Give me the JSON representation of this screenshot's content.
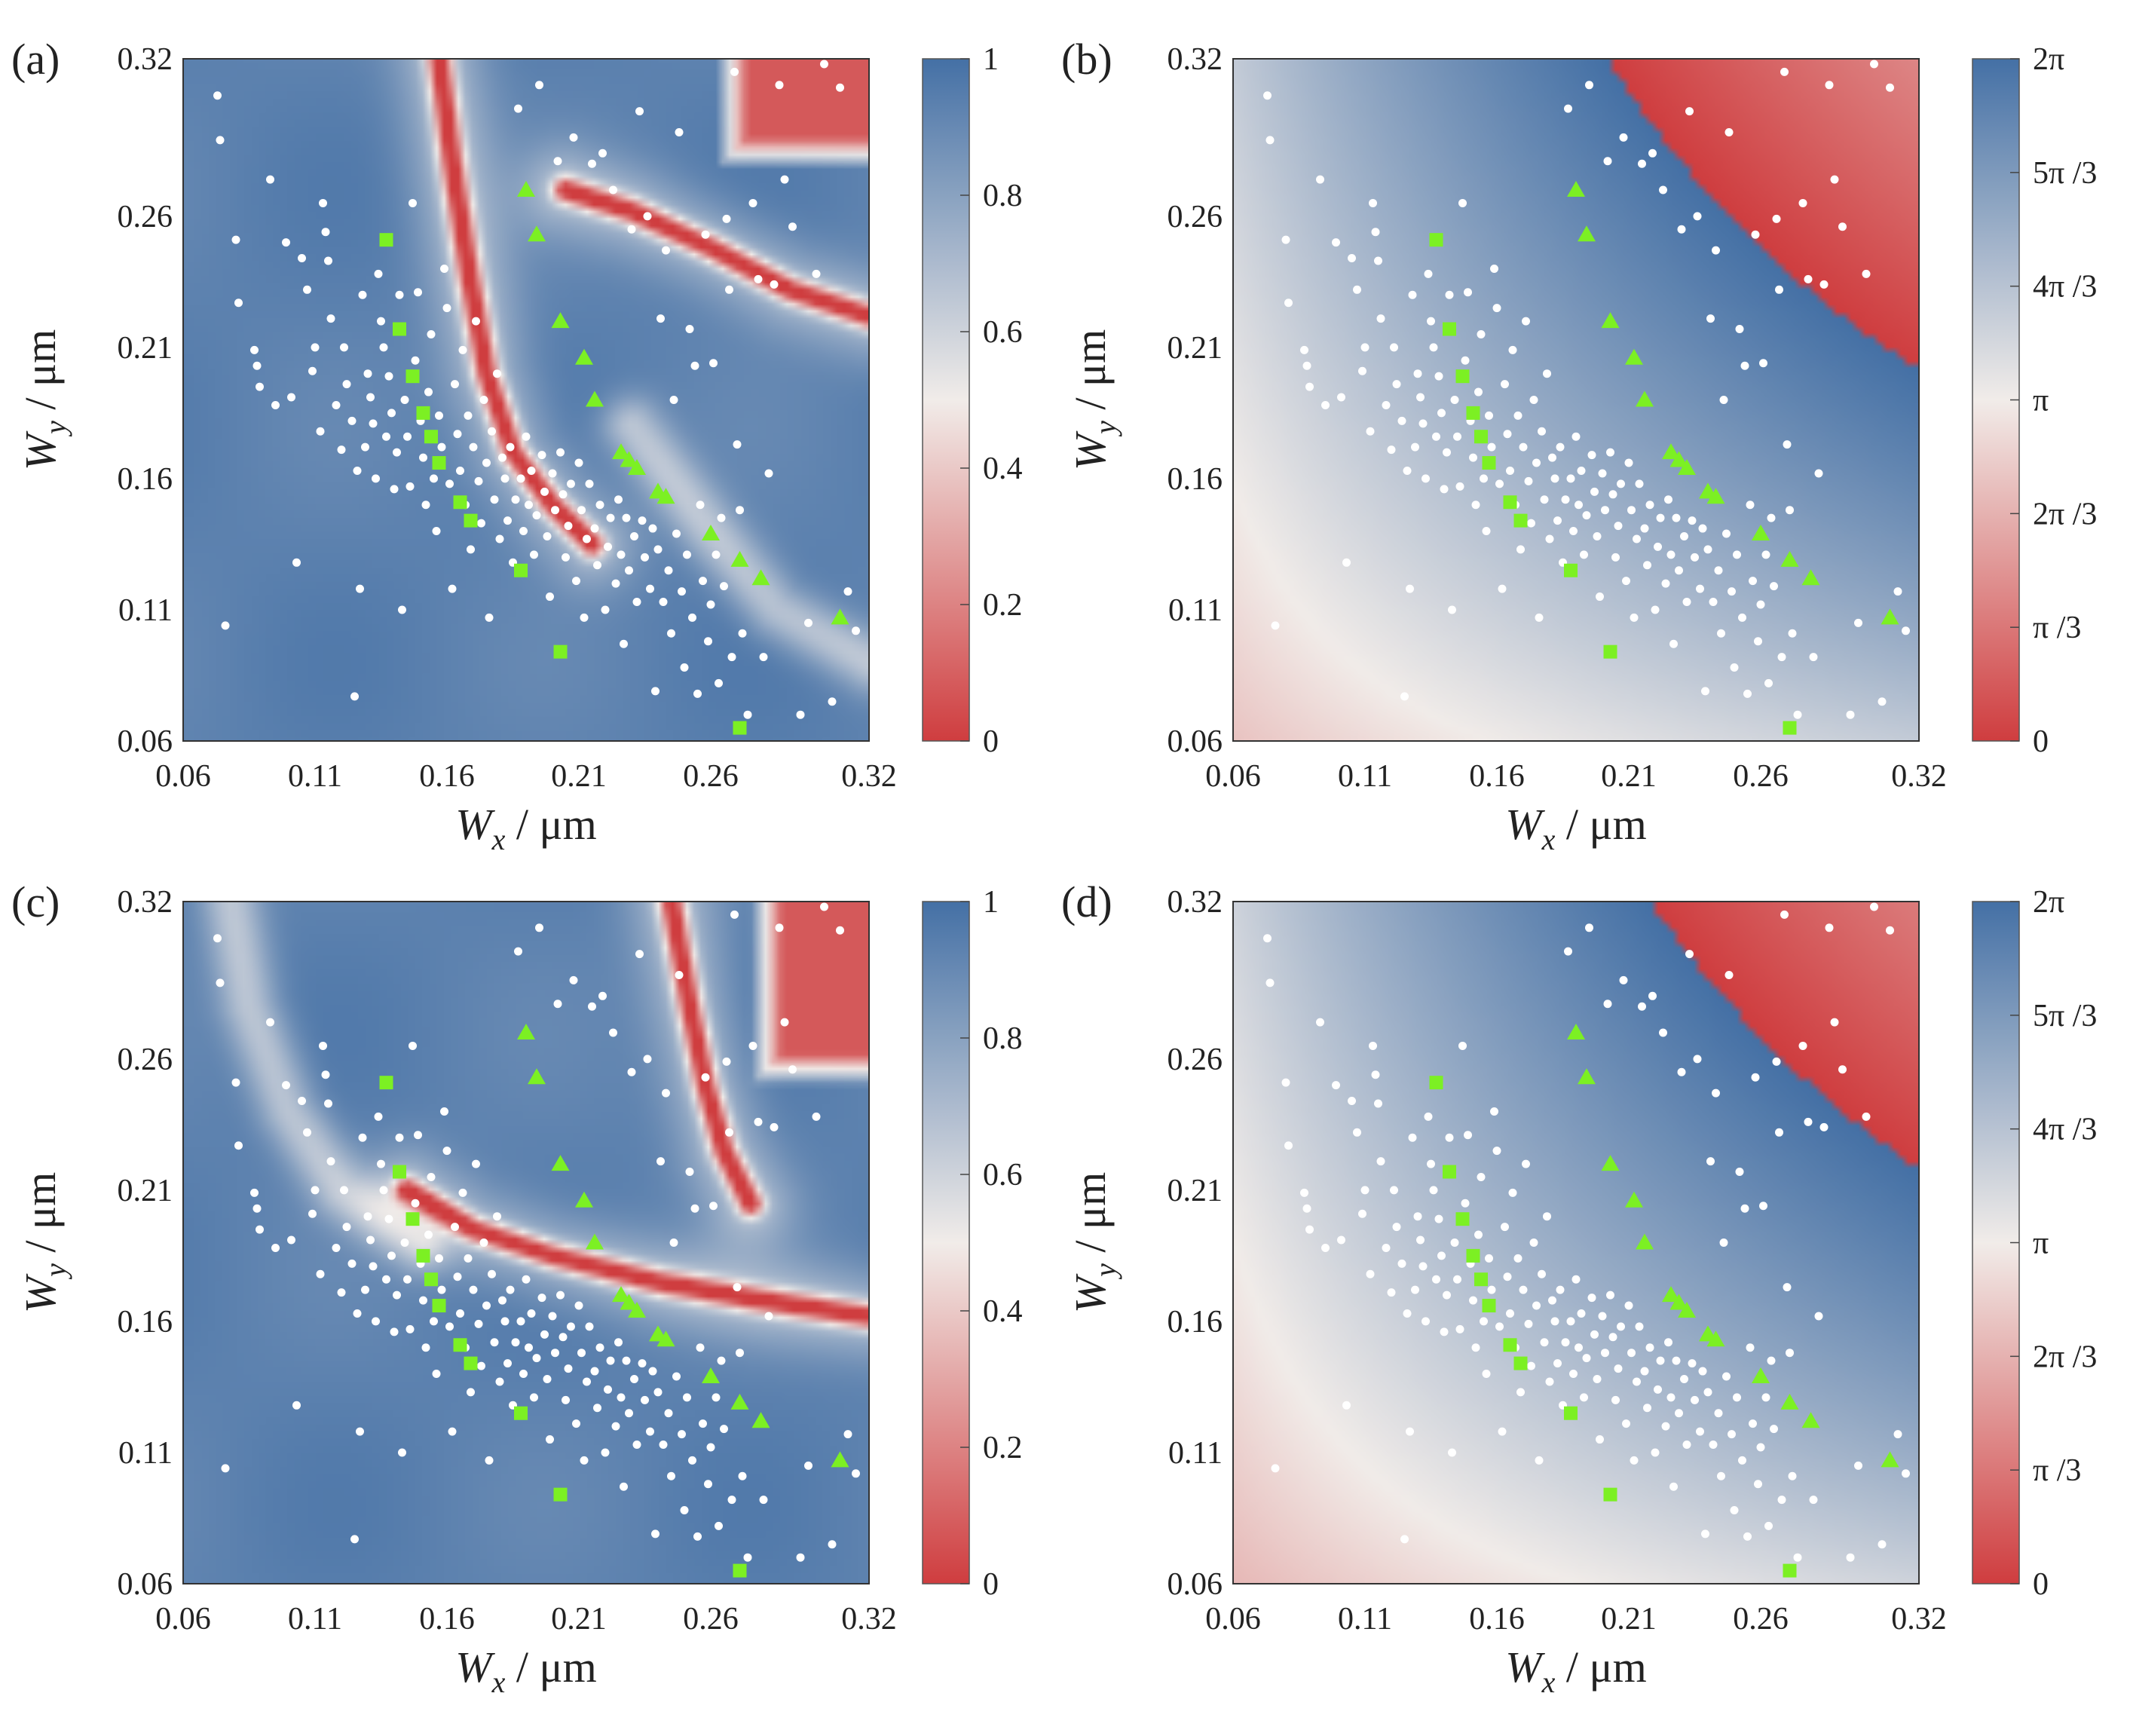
{
  "figure": {
    "colors": {
      "blue": "#4470a5",
      "light": "#f1ece9",
      "red": "#cf3d3f",
      "marker": "#7cf023",
      "dot": "#ffffff"
    },
    "marker_legend": {
      "white-dot": "white circles",
      "green-square": "green squares",
      "green-triangle": "green triangles"
    }
  },
  "chart_data": [
    {
      "panel": "(a)",
      "type": "heatmap",
      "quantity": "amplitude",
      "title": "",
      "xlabel": "W",
      "xlabel_sub": "x",
      "ylabel": "W",
      "ylabel_sub": "y",
      "unit": "/ μm",
      "xticks": [
        "0.06",
        "0.11",
        "0.16",
        "0.21",
        "0.26",
        "0.32"
      ],
      "yticks": [
        "0.32",
        "0.26",
        "0.21",
        "0.16",
        "0.11",
        "0.06"
      ],
      "xlim": [
        0.06,
        0.32
      ],
      "ylim": [
        0.06,
        0.32
      ],
      "colorbar": {
        "ticks": [
          "1",
          "0.8",
          "0.6",
          "0.4",
          "0.2",
          "0"
        ],
        "range": [
          0,
          1
        ]
      },
      "features": [
        {
          "kind": "red-ridge",
          "points": [
            [
              0.157,
              0.32
            ],
            [
              0.162,
              0.28
            ],
            [
              0.168,
              0.24
            ],
            [
              0.175,
              0.2
            ],
            [
              0.185,
              0.17
            ],
            [
              0.2,
              0.15
            ],
            [
              0.215,
              0.135
            ]
          ]
        },
        {
          "kind": "red-ridge",
          "points": [
            [
              0.205,
              0.27
            ],
            [
              0.23,
              0.262
            ],
            [
              0.26,
              0.248
            ],
            [
              0.29,
              0.232
            ],
            [
              0.32,
              0.222
            ]
          ]
        },
        {
          "kind": "faint-ridge",
          "points": [
            [
              0.23,
              0.18
            ],
            [
              0.26,
              0.14
            ],
            [
              0.285,
              0.11
            ],
            [
              0.32,
              0.09
            ]
          ]
        },
        {
          "kind": "red-patch",
          "x": [
            0.262,
            0.32
          ],
          "y": [
            0.278,
            0.32
          ]
        }
      ]
    },
    {
      "panel": "(b)",
      "type": "heatmap",
      "quantity": "phase",
      "title": "",
      "xlabel": "W",
      "xlabel_sub": "x",
      "ylabel": "W",
      "ylabel_sub": "y",
      "unit": "/ μm",
      "xticks": [
        "0.06",
        "0.11",
        "0.16",
        "0.21",
        "0.26",
        "0.32"
      ],
      "yticks": [
        "0.32",
        "0.26",
        "0.21",
        "0.16",
        "0.11",
        "0.06"
      ],
      "xlim": [
        0.06,
        0.32
      ],
      "ylim": [
        0.06,
        0.32
      ],
      "colorbar": {
        "ticks": [
          "2π",
          "5π /3",
          "4π /3",
          "π",
          "2π /3",
          "π /3",
          "0"
        ],
        "range": [
          0,
          6.2832
        ]
      },
      "phase_model": {
        "k": 20.0,
        "offset": 3.6
      }
    },
    {
      "panel": "(c)",
      "type": "heatmap",
      "quantity": "amplitude",
      "title": "",
      "xlabel": "W",
      "xlabel_sub": "x",
      "ylabel": "W",
      "ylabel_sub": "y",
      "unit": "/ μm",
      "xticks": [
        "0.06",
        "0.11",
        "0.16",
        "0.21",
        "0.26",
        "0.32"
      ],
      "yticks": [
        "0.32",
        "0.26",
        "0.21",
        "0.16",
        "0.11",
        "0.06"
      ],
      "xlim": [
        0.06,
        0.32
      ],
      "ylim": [
        0.06,
        0.32
      ],
      "colorbar": {
        "ticks": [
          "1",
          "0.8",
          "0.6",
          "0.4",
          "0.2",
          "0"
        ],
        "range": [
          0,
          1
        ]
      },
      "features": [
        {
          "kind": "red-ridge",
          "points": [
            [
              0.145,
              0.21
            ],
            [
              0.17,
              0.195
            ],
            [
              0.2,
              0.185
            ],
            [
              0.24,
              0.175
            ],
            [
              0.28,
              0.168
            ],
            [
              0.32,
              0.162
            ]
          ]
        },
        {
          "kind": "red-ridge",
          "points": [
            [
              0.245,
              0.32
            ],
            [
              0.252,
              0.28
            ],
            [
              0.258,
              0.25
            ],
            [
              0.265,
              0.225
            ],
            [
              0.275,
              0.205
            ]
          ]
        },
        {
          "kind": "faint-ridge",
          "points": [
            [
              0.078,
              0.32
            ],
            [
              0.085,
              0.28
            ],
            [
              0.1,
              0.24
            ],
            [
              0.12,
              0.21
            ],
            [
              0.15,
              0.19
            ]
          ]
        },
        {
          "kind": "red-patch",
          "x": [
            0.275,
            0.32
          ],
          "y": [
            0.25,
            0.32
          ]
        }
      ]
    },
    {
      "panel": "(d)",
      "type": "heatmap",
      "quantity": "phase",
      "title": "",
      "xlabel": "W",
      "xlabel_sub": "x",
      "ylabel": "W",
      "ylabel_sub": "y",
      "unit": "/ μm",
      "xticks": [
        "0.06",
        "0.11",
        "0.16",
        "0.21",
        "0.26",
        "0.32"
      ],
      "yticks": [
        "0.32",
        "0.26",
        "0.21",
        "0.16",
        "0.11",
        "0.06"
      ],
      "xlim": [
        0.06,
        0.32
      ],
      "ylim": [
        0.06,
        0.32
      ],
      "colorbar": {
        "ticks": [
          "2π",
          "5π /3",
          "4π /3",
          "π",
          "2π /3",
          "π /3",
          "0"
        ],
        "range": [
          0,
          6.2832
        ]
      },
      "phase_model": {
        "k": 20.0,
        "offset": 3.4
      }
    }
  ],
  "markers": {
    "squares": [
      [
        0.137,
        0.251
      ],
      [
        0.142,
        0.217
      ],
      [
        0.147,
        0.199
      ],
      [
        0.151,
        0.185
      ],
      [
        0.154,
        0.176
      ],
      [
        0.157,
        0.166
      ],
      [
        0.165,
        0.151
      ],
      [
        0.169,
        0.144
      ],
      [
        0.188,
        0.125
      ],
      [
        0.203,
        0.094
      ],
      [
        0.271,
        0.065
      ]
    ],
    "triangles": [
      [
        0.19,
        0.27
      ],
      [
        0.194,
        0.253
      ],
      [
        0.203,
        0.22
      ],
      [
        0.212,
        0.206
      ],
      [
        0.216,
        0.19
      ],
      [
        0.226,
        0.17
      ],
      [
        0.229,
        0.167
      ],
      [
        0.232,
        0.164
      ],
      [
        0.24,
        0.155
      ],
      [
        0.243,
        0.153
      ],
      [
        0.26,
        0.139
      ],
      [
        0.271,
        0.129
      ],
      [
        0.279,
        0.122
      ],
      [
        0.309,
        0.107
      ]
    ],
    "dots": [
      [
        0.073,
        0.306
      ],
      [
        0.074,
        0.289
      ],
      [
        0.076,
        0.104
      ],
      [
        0.08,
        0.251
      ],
      [
        0.081,
        0.227
      ],
      [
        0.087,
        0.209
      ],
      [
        0.088,
        0.203
      ],
      [
        0.089,
        0.195
      ],
      [
        0.093,
        0.274
      ],
      [
        0.095,
        0.188
      ],
      [
        0.099,
        0.25
      ],
      [
        0.101,
        0.191
      ],
      [
        0.103,
        0.128
      ],
      [
        0.105,
        0.244
      ],
      [
        0.107,
        0.232
      ],
      [
        0.109,
        0.201
      ],
      [
        0.11,
        0.21
      ],
      [
        0.112,
        0.178
      ],
      [
        0.113,
        0.265
      ],
      [
        0.114,
        0.254
      ],
      [
        0.115,
        0.243
      ],
      [
        0.116,
        0.221
      ],
      [
        0.118,
        0.188
      ],
      [
        0.12,
        0.171
      ],
      [
        0.121,
        0.21
      ],
      [
        0.122,
        0.196
      ],
      [
        0.124,
        0.182
      ],
      [
        0.125,
        0.077
      ],
      [
        0.126,
        0.163
      ],
      [
        0.127,
        0.118
      ],
      [
        0.128,
        0.23
      ],
      [
        0.129,
        0.172
      ],
      [
        0.13,
        0.2
      ],
      [
        0.131,
        0.191
      ],
      [
        0.132,
        0.181
      ],
      [
        0.133,
        0.16
      ],
      [
        0.134,
        0.238
      ],
      [
        0.135,
        0.22
      ],
      [
        0.136,
        0.21
      ],
      [
        0.137,
        0.176
      ],
      [
        0.138,
        0.199
      ],
      [
        0.139,
        0.185
      ],
      [
        0.14,
        0.156
      ],
      [
        0.141,
        0.17
      ],
      [
        0.142,
        0.23
      ],
      [
        0.143,
        0.11
      ],
      [
        0.144,
        0.19
      ],
      [
        0.145,
        0.176
      ],
      [
        0.146,
        0.157
      ],
      [
        0.147,
        0.265
      ],
      [
        0.148,
        0.205
      ],
      [
        0.149,
        0.231
      ],
      [
        0.15,
        0.182
      ],
      [
        0.151,
        0.168
      ],
      [
        0.152,
        0.15
      ],
      [
        0.153,
        0.193
      ],
      [
        0.154,
        0.215
      ],
      [
        0.155,
        0.16
      ],
      [
        0.156,
        0.14
      ],
      [
        0.157,
        0.184
      ],
      [
        0.158,
        0.172
      ],
      [
        0.159,
        0.24
      ],
      [
        0.16,
        0.225
      ],
      [
        0.161,
        0.158
      ],
      [
        0.162,
        0.118
      ],
      [
        0.163,
        0.196
      ],
      [
        0.164,
        0.177
      ],
      [
        0.165,
        0.163
      ],
      [
        0.166,
        0.209
      ],
      [
        0.167,
        0.15
      ],
      [
        0.168,
        0.184
      ],
      [
        0.169,
        0.133
      ],
      [
        0.17,
        0.172
      ],
      [
        0.171,
        0.22
      ],
      [
        0.172,
        0.159
      ],
      [
        0.173,
        0.143
      ],
      [
        0.174,
        0.19
      ],
      [
        0.175,
        0.166
      ],
      [
        0.176,
        0.107
      ],
      [
        0.177,
        0.178
      ],
      [
        0.178,
        0.152
      ],
      [
        0.179,
        0.2
      ],
      [
        0.18,
        0.137
      ],
      [
        0.181,
        0.168
      ],
      [
        0.182,
        0.16
      ],
      [
        0.183,
        0.144
      ],
      [
        0.184,
        0.172
      ],
      [
        0.185,
        0.128
      ],
      [
        0.186,
        0.152
      ],
      [
        0.187,
        0.301
      ],
      [
        0.188,
        0.16
      ],
      [
        0.189,
        0.14
      ],
      [
        0.19,
        0.176
      ],
      [
        0.191,
        0.15
      ],
      [
        0.192,
        0.163
      ],
      [
        0.193,
        0.131
      ],
      [
        0.194,
        0.146
      ],
      [
        0.195,
        0.31
      ],
      [
        0.196,
        0.169
      ],
      [
        0.197,
        0.155
      ],
      [
        0.198,
        0.138
      ],
      [
        0.199,
        0.115
      ],
      [
        0.2,
        0.162
      ],
      [
        0.201,
        0.148
      ],
      [
        0.202,
        0.281
      ],
      [
        0.203,
        0.17
      ],
      [
        0.204,
        0.154
      ],
      [
        0.205,
        0.13
      ],
      [
        0.206,
        0.142
      ],
      [
        0.207,
        0.158
      ],
      [
        0.208,
        0.29
      ],
      [
        0.209,
        0.121
      ],
      [
        0.21,
        0.166
      ],
      [
        0.211,
        0.148
      ],
      [
        0.212,
        0.107
      ],
      [
        0.213,
        0.137
      ],
      [
        0.214,
        0.158
      ],
      [
        0.215,
        0.28
      ],
      [
        0.216,
        0.141
      ],
      [
        0.217,
        0.127
      ],
      [
        0.218,
        0.15
      ],
      [
        0.219,
        0.284
      ],
      [
        0.22,
        0.11
      ],
      [
        0.221,
        0.134
      ],
      [
        0.222,
        0.145
      ],
      [
        0.223,
        0.27
      ],
      [
        0.224,
        0.12
      ],
      [
        0.225,
        0.152
      ],
      [
        0.226,
        0.131
      ],
      [
        0.227,
        0.097
      ],
      [
        0.228,
        0.145
      ],
      [
        0.229,
        0.125
      ],
      [
        0.23,
        0.255
      ],
      [
        0.231,
        0.138
      ],
      [
        0.232,
        0.113
      ],
      [
        0.233,
        0.3
      ],
      [
        0.234,
        0.144
      ],
      [
        0.235,
        0.13
      ],
      [
        0.236,
        0.26
      ],
      [
        0.237,
        0.118
      ],
      [
        0.238,
        0.141
      ],
      [
        0.239,
        0.079
      ],
      [
        0.24,
        0.133
      ],
      [
        0.241,
        0.221
      ],
      [
        0.242,
        0.113
      ],
      [
        0.243,
        0.247
      ],
      [
        0.244,
        0.125
      ],
      [
        0.245,
        0.101
      ],
      [
        0.246,
        0.19
      ],
      [
        0.247,
        0.139
      ],
      [
        0.248,
        0.292
      ],
      [
        0.249,
        0.117
      ],
      [
        0.25,
        0.088
      ],
      [
        0.251,
        0.131
      ],
      [
        0.252,
        0.217
      ],
      [
        0.253,
        0.107
      ],
      [
        0.254,
        0.203
      ],
      [
        0.255,
        0.078
      ],
      [
        0.256,
        0.15
      ],
      [
        0.257,
        0.121
      ],
      [
        0.258,
        0.253
      ],
      [
        0.259,
        0.098
      ],
      [
        0.26,
        0.112
      ],
      [
        0.261,
        0.204
      ],
      [
        0.262,
        0.131
      ],
      [
        0.263,
        0.082
      ],
      [
        0.264,
        0.145
      ],
      [
        0.265,
        0.119
      ],
      [
        0.266,
        0.259
      ],
      [
        0.267,
        0.232
      ],
      [
        0.268,
        0.092
      ],
      [
        0.269,
        0.315
      ],
      [
        0.27,
        0.173
      ],
      [
        0.271,
        0.148
      ],
      [
        0.272,
        0.101
      ],
      [
        0.274,
        0.07
      ],
      [
        0.276,
        0.265
      ],
      [
        0.278,
        0.236
      ],
      [
        0.28,
        0.092
      ],
      [
        0.282,
        0.162
      ],
      [
        0.284,
        0.234
      ],
      [
        0.286,
        0.31
      ],
      [
        0.288,
        0.274
      ],
      [
        0.291,
        0.256
      ],
      [
        0.294,
        0.07
      ],
      [
        0.297,
        0.105
      ],
      [
        0.3,
        0.238
      ],
      [
        0.303,
        0.318
      ],
      [
        0.306,
        0.075
      ],
      [
        0.309,
        0.309
      ],
      [
        0.312,
        0.117
      ],
      [
        0.315,
        0.102
      ]
    ]
  }
}
